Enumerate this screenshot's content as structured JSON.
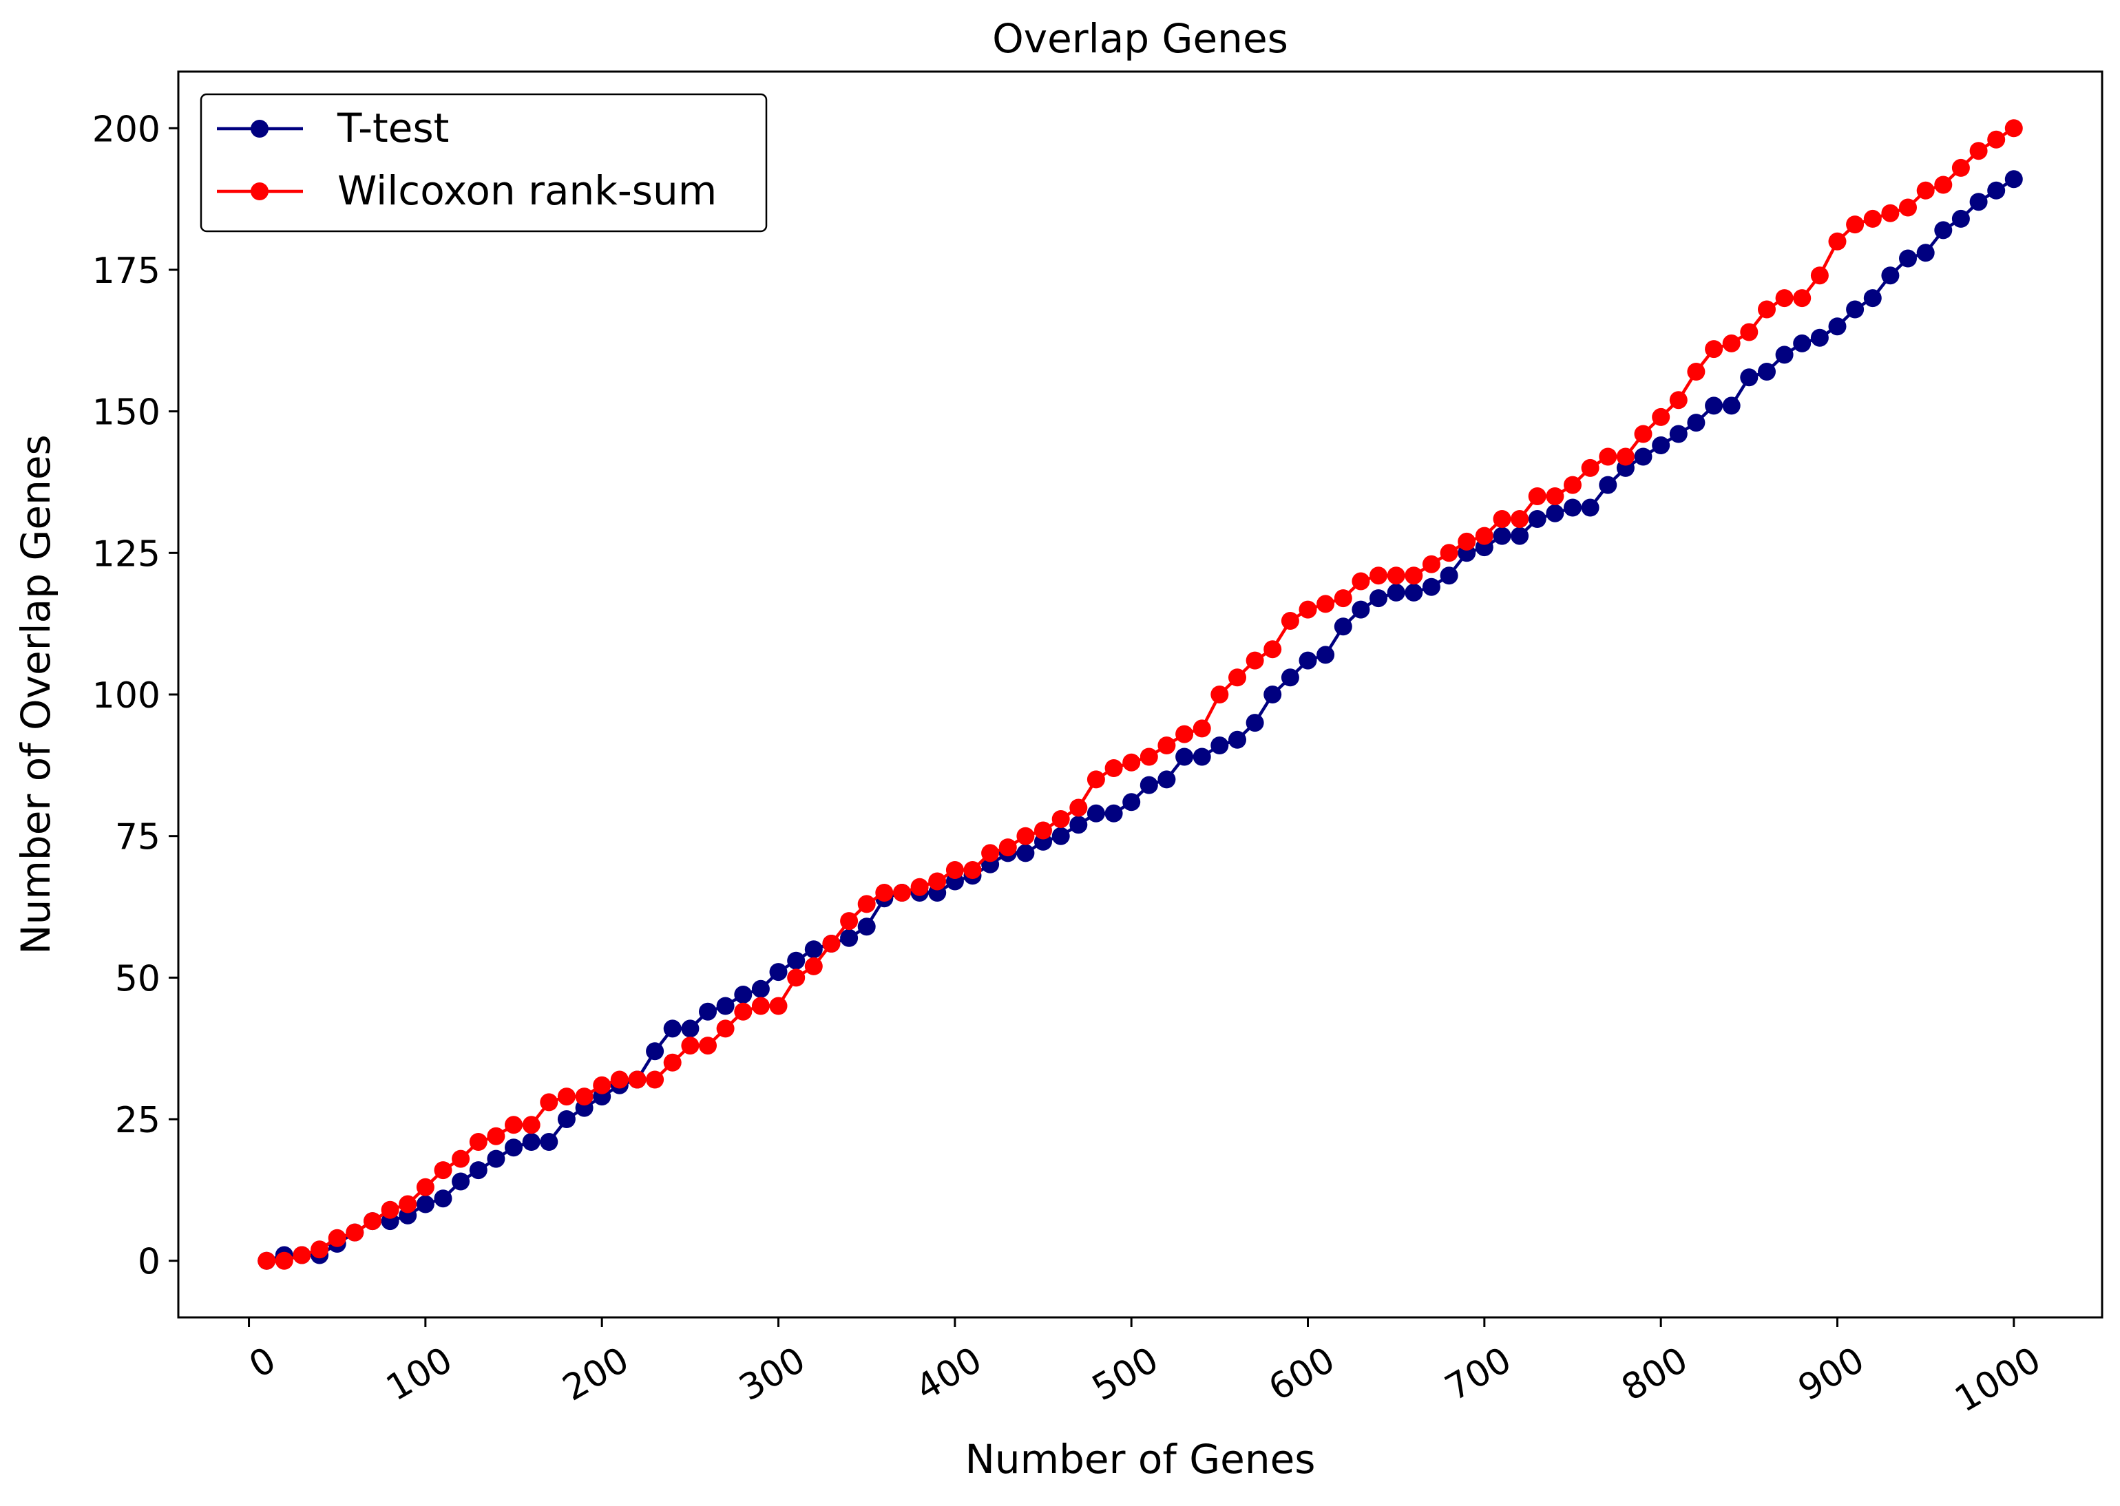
{
  "chart_data": {
    "type": "line",
    "title": "Overlap Genes",
    "xlabel": "Number of Genes",
    "ylabel": "Number of Overlap Genes",
    "xlim": [
      -40,
      1050
    ],
    "ylim": [
      -10,
      210
    ],
    "xticks": [
      0,
      100,
      200,
      300,
      400,
      500,
      600,
      700,
      800,
      900,
      1000
    ],
    "yticks": [
      0,
      25,
      50,
      75,
      100,
      125,
      150,
      175,
      200
    ],
    "grid": false,
    "legend_position": "top-left",
    "x": [
      10,
      20,
      30,
      40,
      50,
      60,
      70,
      80,
      90,
      100,
      110,
      120,
      130,
      140,
      150,
      160,
      170,
      180,
      190,
      200,
      210,
      220,
      230,
      240,
      250,
      260,
      270,
      280,
      290,
      300,
      310,
      320,
      330,
      340,
      350,
      360,
      370,
      380,
      390,
      400,
      410,
      420,
      430,
      440,
      450,
      460,
      470,
      480,
      490,
      500,
      510,
      520,
      530,
      540,
      550,
      560,
      570,
      580,
      590,
      600,
      610,
      620,
      630,
      640,
      650,
      660,
      670,
      680,
      690,
      700,
      710,
      720,
      730,
      740,
      750,
      760,
      770,
      780,
      790,
      800,
      810,
      820,
      830,
      840,
      850,
      860,
      870,
      880,
      890,
      900,
      910,
      920,
      930,
      940,
      950,
      960,
      970,
      980,
      990,
      1000
    ],
    "series": [
      {
        "name": "T-test",
        "color": "#000080",
        "values": [
          0,
          1,
          1,
          1,
          3,
          5,
          7,
          7,
          8,
          10,
          11,
          14,
          16,
          18,
          20,
          21,
          21,
          25,
          27,
          29,
          31,
          32,
          37,
          41,
          41,
          44,
          45,
          47,
          48,
          51,
          53,
          55,
          56,
          57,
          59,
          64,
          65,
          65,
          65,
          67,
          68,
          70,
          72,
          72,
          74,
          75,
          77,
          79,
          79,
          81,
          84,
          85,
          89,
          89,
          91,
          92,
          95,
          100,
          103,
          106,
          107,
          112,
          115,
          117,
          118,
          118,
          119,
          121,
          125,
          126,
          128,
          128,
          131,
          132,
          133,
          133,
          137,
          140,
          142,
          144,
          146,
          148,
          151,
          151,
          156,
          157,
          160,
          162,
          163,
          165,
          168,
          170,
          174,
          177,
          178,
          182,
          184,
          187,
          189,
          191
        ]
      },
      {
        "name": "Wilcoxon rank-sum",
        "color": "#ff0000",
        "values": [
          0,
          0,
          1,
          2,
          4,
          5,
          7,
          9,
          10,
          13,
          16,
          18,
          21,
          22,
          24,
          24,
          28,
          29,
          29,
          31,
          32,
          32,
          32,
          35,
          38,
          38,
          41,
          44,
          45,
          45,
          50,
          52,
          56,
          60,
          63,
          65,
          65,
          66,
          67,
          69,
          69,
          72,
          73,
          75,
          76,
          78,
          80,
          85,
          87,
          88,
          89,
          91,
          93,
          94,
          100,
          103,
          106,
          108,
          113,
          115,
          116,
          117,
          120,
          121,
          121,
          121,
          123,
          125,
          127,
          128,
          131,
          131,
          135,
          135,
          137,
          140,
          142,
          142,
          146,
          149,
          152,
          157,
          161,
          162,
          164,
          168,
          170,
          170,
          174,
          180,
          183,
          184,
          185,
          186,
          189,
          190,
          193,
          196,
          198,
          200
        ]
      }
    ]
  }
}
